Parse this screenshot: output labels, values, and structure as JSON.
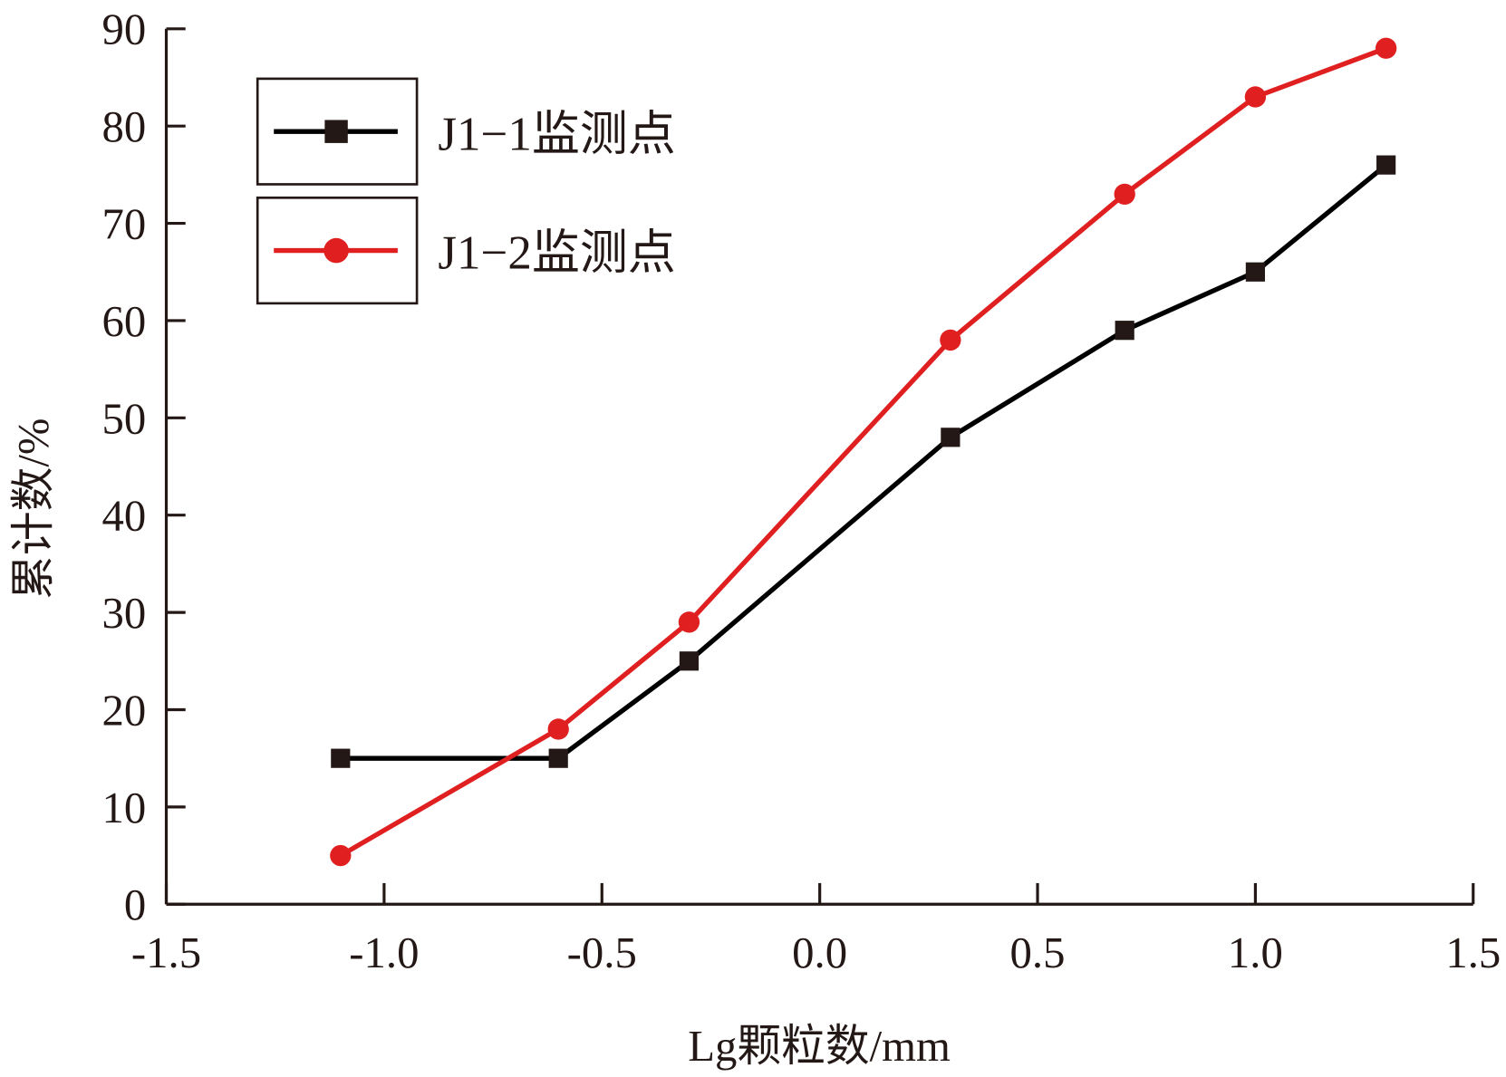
{
  "chart_data": {
    "type": "line",
    "title": "",
    "xlabel": "Lg颗粒数/mm",
    "ylabel": "累计数/%",
    "xlim": [
      -1.5,
      1.5
    ],
    "ylim": [
      0,
      90
    ],
    "xticks": [
      -1.5,
      -1.0,
      -0.5,
      0.0,
      0.5,
      1.0,
      1.5
    ],
    "xtick_labels": [
      "-1.5",
      "-1.0",
      "-0.5",
      "0.0",
      "0.5",
      "1.0",
      "1.5"
    ],
    "yticks": [
      0,
      10,
      20,
      30,
      40,
      50,
      60,
      70,
      80,
      90
    ],
    "ytick_labels": [
      "0",
      "10",
      "20",
      "30",
      "40",
      "50",
      "60",
      "70",
      "80",
      "90"
    ],
    "grid": false,
    "legend_position": "top-left",
    "series": [
      {
        "name": "J1−1监测点",
        "color": "#000000",
        "marker": "square",
        "x": [
          -1.1,
          -0.6,
          -0.3,
          0.3,
          0.7,
          1.0,
          1.3
        ],
        "y": [
          15,
          15,
          25,
          48,
          59,
          65,
          76
        ]
      },
      {
        "name": "J1−2监测点",
        "color": "#e02020",
        "marker": "circle",
        "x": [
          -1.1,
          -0.6,
          -0.3,
          0.3,
          0.7,
          1.0,
          1.3
        ],
        "y": [
          5,
          18,
          29,
          58,
          73,
          83,
          88
        ]
      }
    ]
  }
}
